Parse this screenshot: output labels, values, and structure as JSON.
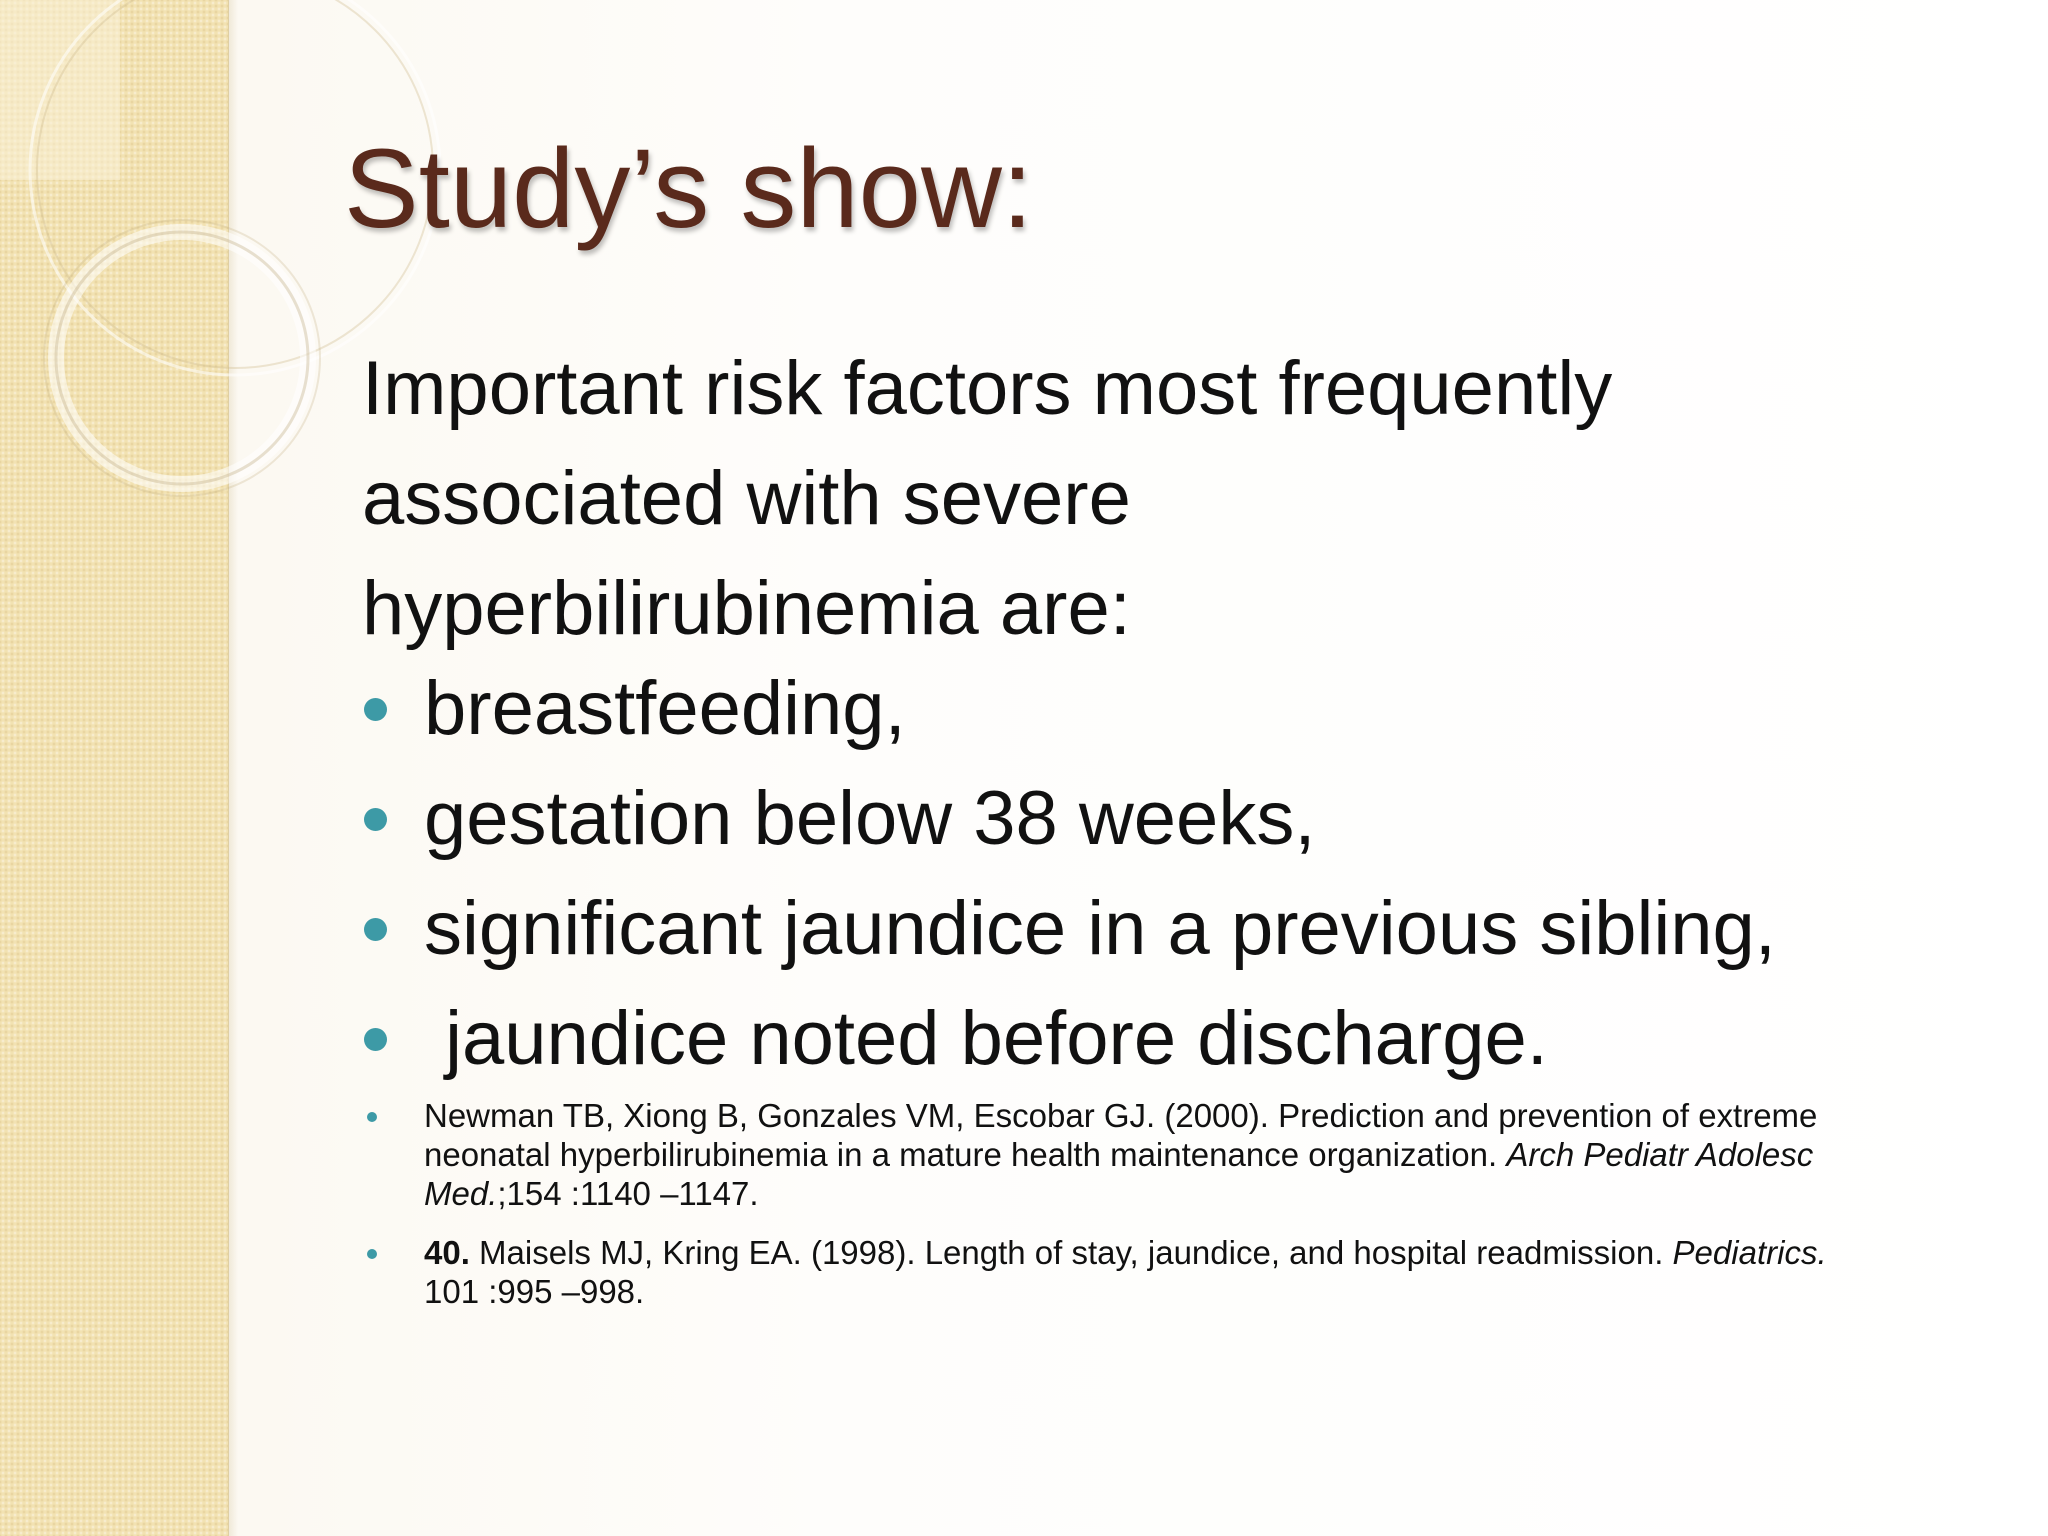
{
  "slide": {
    "title": "Study’s show:",
    "intro_lines": [
      "Important risk factors most frequently",
      "associated with severe",
      "hyperbilirubinemia are:"
    ],
    "bullets": [
      "breastfeeding,",
      "gestation below 38 weeks,",
      "significant jaundice in a previous sibling,",
      " jaundice noted before discharge."
    ],
    "references": [
      {
        "authors": "Newman TB, Xiong B, Gonzales VM, Escobar GJ. (2000). Prediction and prevention of extreme neonatal hyperbilirubinemia in a mature health maintenance organization. ",
        "journal": "Arch Pediatr Adolesc Med.",
        "details": ";154 :1140 –1147."
      },
      {
        "number": "40.",
        "authors": " Maisels MJ, Kring EA. (1998). Length of stay, jaundice, and hospital readmission. ",
        "journal": "Pediatrics.",
        "details": " 101 :995 –998."
      }
    ]
  },
  "colors": {
    "title": "#5a2a1c",
    "bullet": "#3d9aa6",
    "side_band": "#f2e2b2",
    "text": "#111111"
  },
  "icons": {
    "bullet": "teal-dot",
    "decoration": "cream-rings"
  }
}
